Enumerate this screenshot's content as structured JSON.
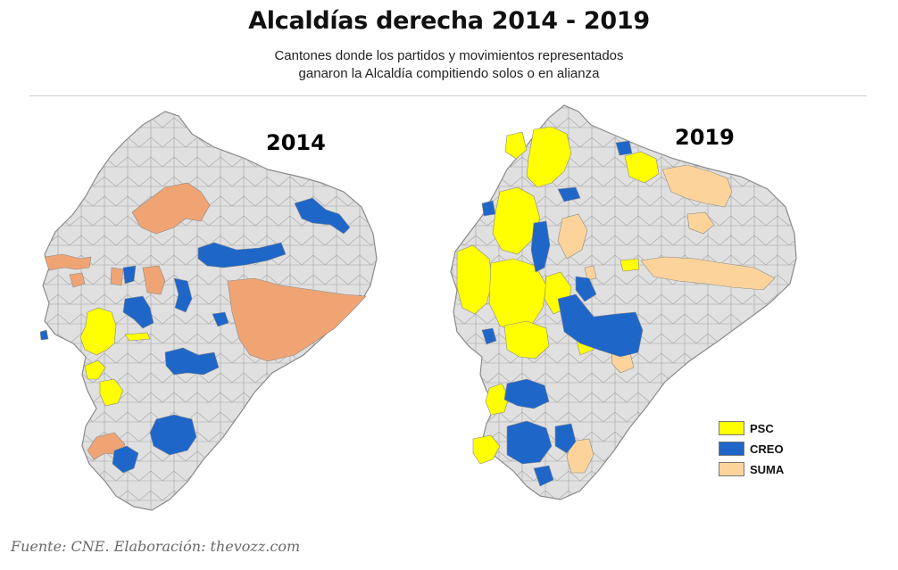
{
  "header": {
    "title": "Alcaldías derecha 2014 - 2019",
    "subtitle_line1": "Cantones donde los partidos y movimientos representados",
    "subtitle_line2": "ganaron la Alcaldía compitiendo solos o en alianza"
  },
  "maps": [
    {
      "year_label": "2014"
    },
    {
      "year_label": "2019"
    }
  ],
  "legend": [
    {
      "label": "PSC",
      "color": "#ffff00"
    },
    {
      "label": "CREO",
      "color": "#1f66c9"
    },
    {
      "label": "SUMA",
      "color": "#fcd49b"
    }
  ],
  "colors": {
    "base_canton": "#e0e0e0",
    "border": "#8a8a8a",
    "suma_2014": "#f0a474",
    "psc": "#ffff00",
    "creo": "#1f66c9",
    "suma": "#fcd49b"
  },
  "footer": {
    "source": "Fuente: CNE. Elaboración: thevozz.com"
  }
}
